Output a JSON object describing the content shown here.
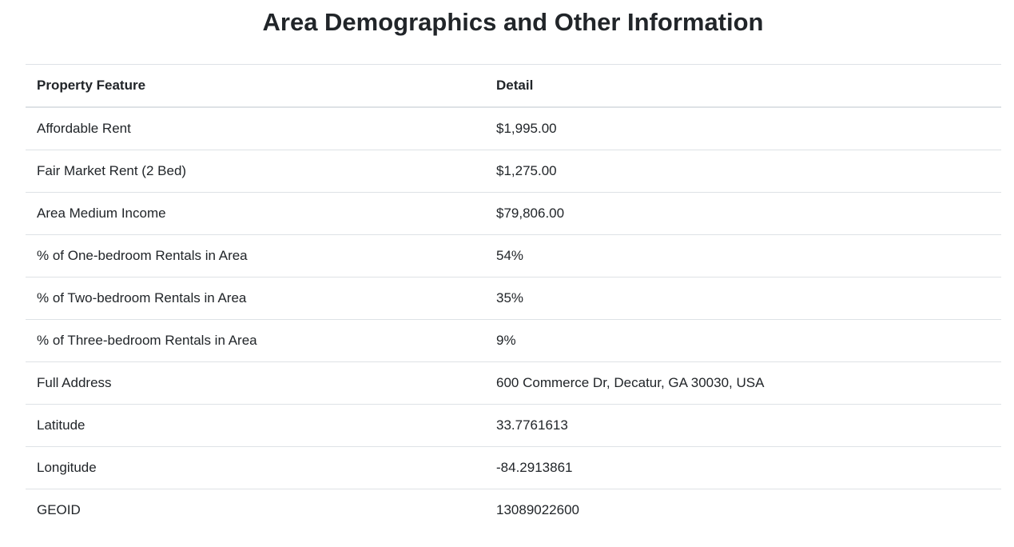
{
  "page": {
    "title": "Area Demographics and Other Information"
  },
  "table": {
    "headers": [
      "Property Feature",
      "Detail"
    ],
    "rows": [
      {
        "feature": "Affordable Rent",
        "detail": "$1,995.00"
      },
      {
        "feature": "Fair Market Rent (2 Bed)",
        "detail": "$1,275.00"
      },
      {
        "feature": "Area Medium Income",
        "detail": "$79,806.00"
      },
      {
        "feature": "% of One-bedroom Rentals in Area",
        "detail": "54%"
      },
      {
        "feature": "% of Two-bedroom Rentals in Area",
        "detail": "35%"
      },
      {
        "feature": "% of Three-bedroom Rentals in Area",
        "detail": "9%"
      },
      {
        "feature": "Full Address",
        "detail": "600 Commerce Dr, Decatur, GA 30030, USA"
      },
      {
        "feature": "Latitude",
        "detail": "33.7761613"
      },
      {
        "feature": "Longitude",
        "detail": "-84.2913861"
      },
      {
        "feature": "GEOID",
        "detail": "13089022600"
      }
    ]
  }
}
